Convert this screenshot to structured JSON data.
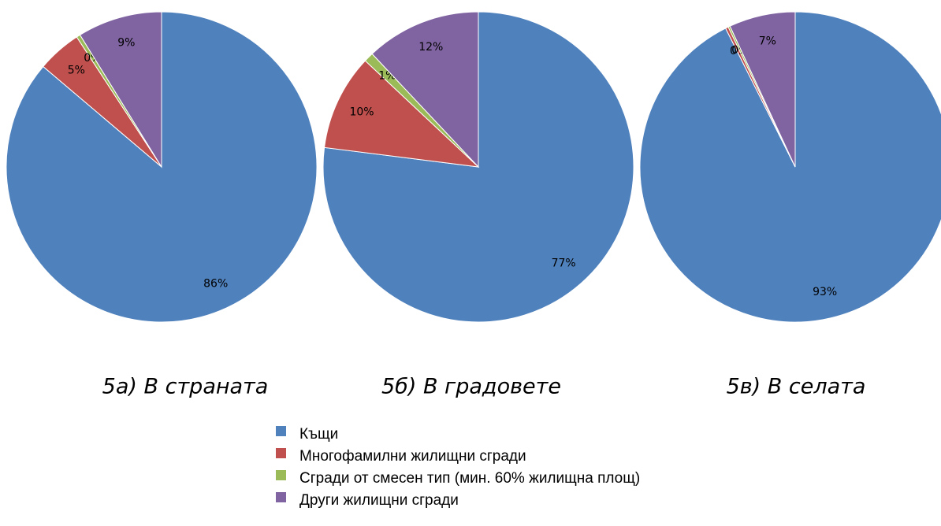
{
  "chart_data": [
    {
      "type": "pie",
      "title": "5а) В страната",
      "values": [
        86.2,
        4.6,
        0.4,
        8.8
      ],
      "value_labels": [
        "86%",
        "5%",
        "0%",
        "9%"
      ]
    },
    {
      "type": "pie",
      "title": "5б) В градовете",
      "values": [
        77,
        10,
        1,
        12
      ],
      "value_labels": [
        "77%",
        "10%",
        "1%",
        "12%"
      ]
    },
    {
      "type": "pie",
      "title": "5в) В селата",
      "values": [
        92.6,
        0.3,
        0.2,
        6.9
      ],
      "value_labels": [
        "93%",
        "0%",
        "0%",
        "7%"
      ]
    }
  ],
  "legend": {
    "categories": [
      "Къщи",
      "Многофамилни жилищни сгради",
      "Сгради от смесен тип (мин. 60% жилищна площ)",
      "Други жилищни сгради"
    ],
    "colors": [
      "#4f81bd",
      "#c0504d",
      "#9bbb59",
      "#8064a2"
    ]
  }
}
